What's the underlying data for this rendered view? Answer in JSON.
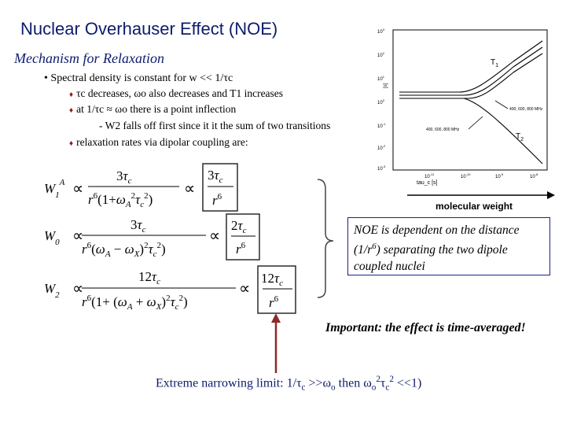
{
  "title": "Nuclear Overhauser Effect (NOE)",
  "subtitle": "Mechanism for Relaxation",
  "bullets": {
    "main": "• Spectral density is constant for w << 1/τc",
    "sub1": "τc decreases, ωo also decreases and T1 increases",
    "sub2": "at 1/τc ≈ ωo there is a point inflection",
    "sub3": "- W2 falls off first since it it the sum of two transitions",
    "sub4": "relaxation rates via dipolar coupling are:"
  },
  "equations": {
    "w1_label": "W1",
    "w1_sup": "A",
    "w0_label": "W0",
    "w2_label": "W2",
    "prop": "∝"
  },
  "noe_note": "NOE is dependent on the distance (1/r6) separating the two dipole coupled nuclei",
  "important": "Important: the effect is time-averaged!",
  "limit": "Extreme narrowing limit: 1/τc >>ωo then ωo2τc2 <<1)",
  "figure": {
    "y_label": "[s]",
    "x_label": "tau_c [s]",
    "bottom_label": "molecular weight",
    "t1_label": "T1",
    "t2_label": "T2",
    "freq_label_1": "400, 600, 800 MHz",
    "freq_label_2": "400, 600, 800 MHz",
    "y_ticks": [
      "10^3",
      "10^2",
      "10^1",
      "10^0",
      "10^-1",
      "10^-2",
      "10^-3"
    ],
    "x_ticks": [
      "10^-11",
      "10^-10",
      "10^-9",
      "10^-8"
    ]
  },
  "colors": {
    "title": "#0d1c6b",
    "diamond": "#8a1c1c",
    "noe_border": "#1a237e",
    "arrow": "#8b2b2b"
  }
}
